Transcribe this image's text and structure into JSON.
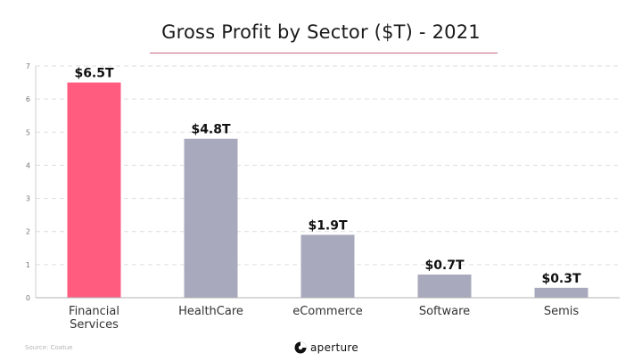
{
  "chart_data": {
    "type": "bar",
    "title": "Gross Profit by Sector ($T) - 2021",
    "categories": [
      [
        "Financial",
        "Services"
      ],
      [
        "HealthCare"
      ],
      [
        "eCommerce"
      ],
      [
        "Software"
      ],
      [
        "Semis"
      ]
    ],
    "values": [
      6.5,
      4.8,
      1.9,
      0.7,
      0.3
    ],
    "value_labels": [
      "$6.5T",
      "$4.8T",
      "$1.9T",
      "$0.7T",
      "$0.3T"
    ],
    "bar_colors": [
      "#ff5c80",
      "#a8a9bd",
      "#a8a9bd",
      "#a8a9bd",
      "#a8a9bd"
    ],
    "ylim": [
      0,
      7
    ],
    "yticks": [
      "0",
      "1",
      "2",
      "3",
      "4",
      "5",
      "6",
      "7"
    ],
    "grid": "horizontal-dashed",
    "xlabel": "",
    "ylabel": ""
  },
  "footer": {
    "source": "Source: Coatue",
    "brand": "aperture"
  }
}
